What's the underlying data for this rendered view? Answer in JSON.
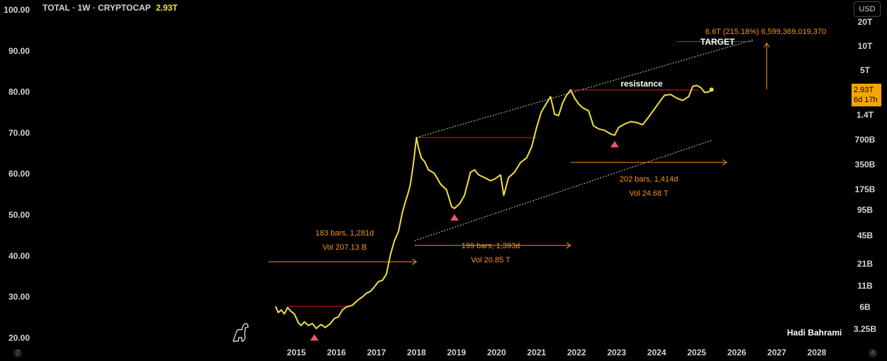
{
  "header": {
    "symbol_line": "TOTAL · 1W · CRYPTOCAP",
    "last_price": "2.93T"
  },
  "currency_button": "USD",
  "price_tag": {
    "price": "2.93T",
    "countdown": "6d 17h"
  },
  "author": "Hadi Bahrami",
  "corner_left": "Z",
  "corner_right": "A",
  "colors": {
    "background": "#000000",
    "line": "#f0e040",
    "annotation": "#f7931a",
    "level": "#e02020",
    "triangle": "#f0506e",
    "channel": "#cccccc"
  },
  "chart_data": {
    "type": "line",
    "series_name": "TOTAL",
    "left_axis_ticks": [
      "100.00",
      "90.00",
      "80.00",
      "70.00",
      "60.00",
      "50.00",
      "40.00",
      "30.00",
      "20.00"
    ],
    "right_axis_ticks": [
      "20T",
      "10T",
      "5T",
      "1.4T",
      "700B",
      "350B",
      "175B",
      "95B",
      "45B",
      "21B",
      "11B",
      "6B",
      "3.25B"
    ],
    "x_ticks": [
      "2015",
      "2016",
      "2017",
      "2018",
      "2019",
      "2020",
      "2021",
      "2022",
      "2023",
      "2024",
      "2025",
      "2026",
      "2027",
      "2028"
    ],
    "x_range": [
      2014.2,
      2028.5
    ],
    "y_scale": "log",
    "points": [
      [
        2014.48,
        6.2
      ],
      [
        2014.55,
        5.2
      ],
      [
        2014.62,
        5.6
      ],
      [
        2014.7,
        5.0
      ],
      [
        2014.78,
        6.0
      ],
      [
        2014.86,
        5.4
      ],
      [
        2014.95,
        5.0
      ],
      [
        2015.05,
        3.9
      ],
      [
        2015.12,
        3.6
      ],
      [
        2015.2,
        4.0
      ],
      [
        2015.3,
        3.6
      ],
      [
        2015.4,
        3.8
      ],
      [
        2015.5,
        3.3
      ],
      [
        2015.55,
        3.5
      ],
      [
        2015.62,
        3.7
      ],
      [
        2015.72,
        3.4
      ],
      [
        2015.85,
        3.8
      ],
      [
        2015.95,
        4.4
      ],
      [
        2016.05,
        4.6
      ],
      [
        2016.15,
        5.6
      ],
      [
        2016.25,
        6.1
      ],
      [
        2016.4,
        6.4
      ],
      [
        2016.55,
        7.5
      ],
      [
        2016.65,
        8.1
      ],
      [
        2016.75,
        9.0
      ],
      [
        2016.85,
        9.5
      ],
      [
        2016.95,
        10.8
      ],
      [
        2017.05,
        12.5
      ],
      [
        2017.15,
        13.0
      ],
      [
        2017.25,
        15.5
      ],
      [
        2017.35,
        27
      ],
      [
        2017.45,
        40
      ],
      [
        2017.55,
        52
      ],
      [
        2017.65,
        90
      ],
      [
        2017.72,
        120
      ],
      [
        2017.8,
        160
      ],
      [
        2017.85,
        200
      ],
      [
        2017.92,
        350
      ],
      [
        2018.0,
        750
      ],
      [
        2018.05,
        560
      ],
      [
        2018.12,
        420
      ],
      [
        2018.2,
        380
      ],
      [
        2018.3,
        300
      ],
      [
        2018.45,
        270
      ],
      [
        2018.6,
        200
      ],
      [
        2018.75,
        170
      ],
      [
        2018.88,
        105
      ],
      [
        2018.95,
        100
      ],
      [
        2019.08,
        115
      ],
      [
        2019.2,
        145
      ],
      [
        2019.35,
        280
      ],
      [
        2019.45,
        300
      ],
      [
        2019.55,
        260
      ],
      [
        2019.7,
        240
      ],
      [
        2019.85,
        220
      ],
      [
        2019.95,
        230
      ],
      [
        2020.1,
        260
      ],
      [
        2020.18,
        145
      ],
      [
        2020.3,
        240
      ],
      [
        2020.45,
        280
      ],
      [
        2020.6,
        370
      ],
      [
        2020.75,
        420
      ],
      [
        2020.88,
        580
      ],
      [
        2021.0,
        1000
      ],
      [
        2021.12,
        1550
      ],
      [
        2021.25,
        2000
      ],
      [
        2021.35,
        2400
      ],
      [
        2021.45,
        1450
      ],
      [
        2021.55,
        1400
      ],
      [
        2021.65,
        2000
      ],
      [
        2021.75,
        2500
      ],
      [
        2021.85,
        2900
      ],
      [
        2021.95,
        2300
      ],
      [
        2022.05,
        1950
      ],
      [
        2022.15,
        1750
      ],
      [
        2022.3,
        1600
      ],
      [
        2022.42,
        1050
      ],
      [
        2022.55,
        960
      ],
      [
        2022.7,
        920
      ],
      [
        2022.85,
        830
      ],
      [
        2022.95,
        800
      ],
      [
        2023.05,
        1000
      ],
      [
        2023.2,
        1100
      ],
      [
        2023.35,
        1180
      ],
      [
        2023.5,
        1150
      ],
      [
        2023.65,
        1080
      ],
      [
        2023.8,
        1350
      ],
      [
        2023.95,
        1700
      ],
      [
        2024.05,
        2000
      ],
      [
        2024.2,
        2500
      ],
      [
        2024.35,
        2550
      ],
      [
        2024.5,
        2300
      ],
      [
        2024.65,
        2150
      ],
      [
        2024.8,
        2400
      ],
      [
        2024.9,
        3200
      ],
      [
        2025.0,
        3300
      ],
      [
        2025.1,
        3100
      ],
      [
        2025.2,
        2700
      ],
      [
        2025.3,
        2750
      ],
      [
        2025.37,
        2930
      ]
    ],
    "annotations": {
      "target_label": "6.6T (215.18%) 6,599,369,019,370",
      "target_title": "TARGET",
      "resistance_label": "resistance",
      "ranges": [
        {
          "bars": "183 bars, 1,281d",
          "vol": "Vol 207.13 B"
        },
        {
          "bars": "199 bars, 1,393d",
          "vol": "Vol 20.85 T"
        },
        {
          "bars": "202 bars, 1,414d",
          "vol": "Vol 24.68 T"
        }
      ]
    }
  }
}
